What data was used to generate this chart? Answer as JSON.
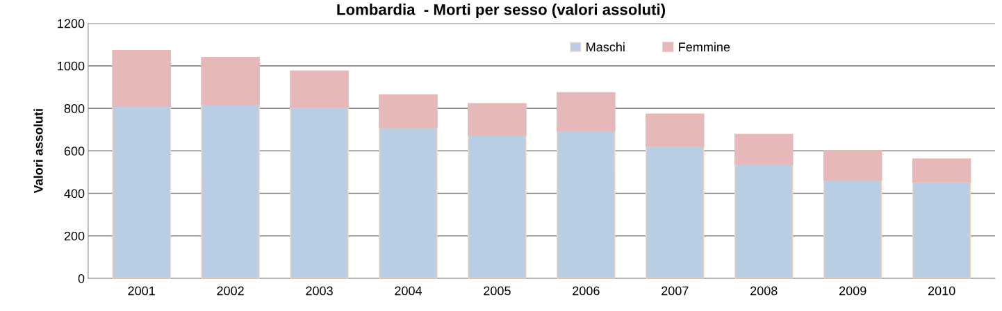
{
  "chart_data": {
    "type": "bar",
    "stacked": true,
    "title": "Lombardia  - Morti per sesso (valori assoluti)",
    "ylabel": "Valori assoluti",
    "categories": [
      "2001",
      "2002",
      "2003",
      "2004",
      "2005",
      "2006",
      "2007",
      "2008",
      "2009",
      "2010"
    ],
    "series": [
      {
        "name": "Maschi",
        "color": "#b9cde4",
        "values": [
          809,
          819,
          804,
          709,
          673,
          694,
          621,
          535,
          462,
          454
        ]
      },
      {
        "name": "Femmine",
        "color": "#e6b8b7",
        "values": [
          263,
          221,
          172,
          154,
          149,
          180,
          152,
          143,
          138,
          108
        ]
      }
    ],
    "ylim": [
      0,
      1200
    ],
    "yticks": [
      0,
      200,
      400,
      600,
      800,
      1000,
      1200
    ],
    "grid": "y",
    "legend": "top"
  }
}
